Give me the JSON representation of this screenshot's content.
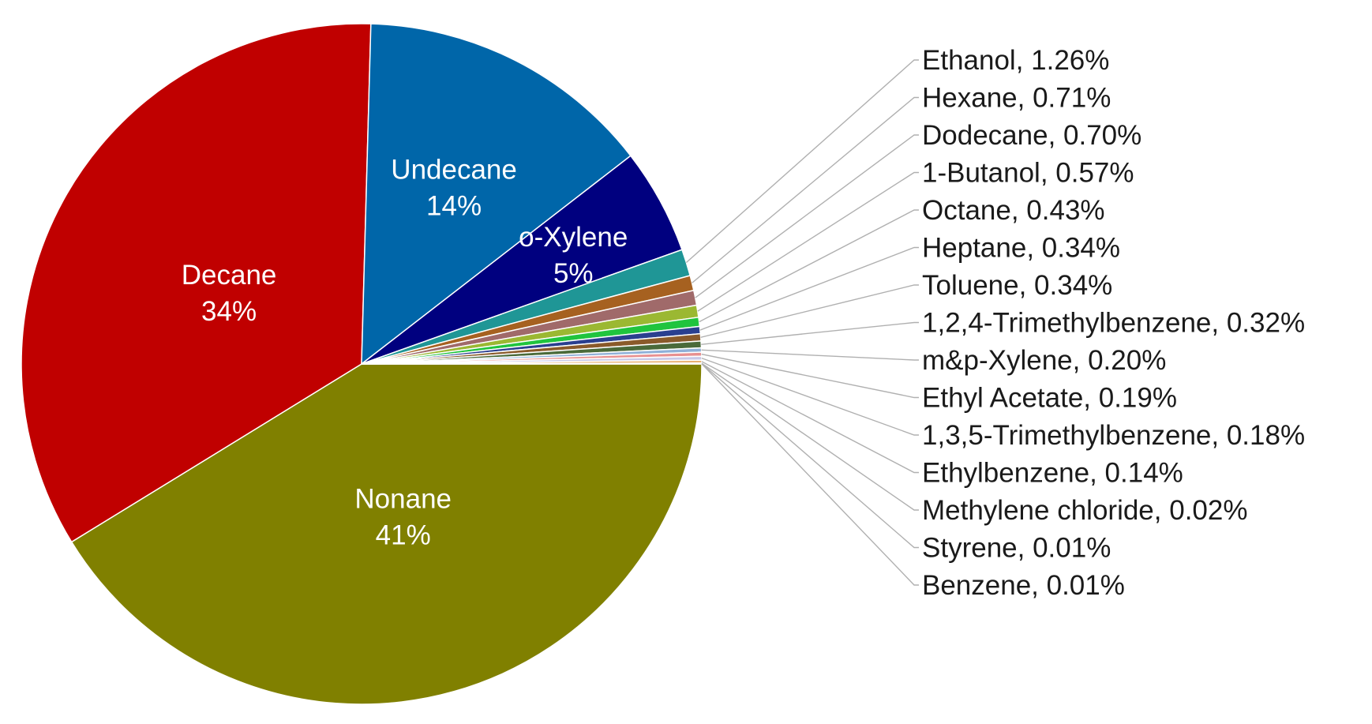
{
  "chart_data": {
    "type": "pie",
    "slices": [
      {
        "name": "Nonane",
        "value": 41,
        "label": "41%",
        "color": "#808000",
        "label_inside": true
      },
      {
        "name": "Decane",
        "value": 34,
        "label": "34%",
        "color": "#C00000",
        "label_inside": true
      },
      {
        "name": "Undecane",
        "value": 14,
        "label": "14%",
        "color": "#0066A9",
        "label_inside": true
      },
      {
        "name": "o-Xylene",
        "value": 5,
        "label": "5%",
        "color": "#00007F",
        "label_inside": true
      },
      {
        "name": "Ethanol",
        "value": 1.26,
        "label": "1.26%",
        "color": "#1F9696",
        "label_inside": false
      },
      {
        "name": "Hexane",
        "value": 0.71,
        "label": "0.71%",
        "color": "#A66120",
        "label_inside": false
      },
      {
        "name": "Dodecane",
        "value": 0.7,
        "label": "0.70%",
        "color": "#A06A6A",
        "label_inside": false
      },
      {
        "name": "1-Butanol",
        "value": 0.57,
        "label": "0.57%",
        "color": "#9BB832",
        "label_inside": false
      },
      {
        "name": "Octane",
        "value": 0.43,
        "label": "0.43%",
        "color": "#20C43E",
        "label_inside": false
      },
      {
        "name": "Heptane",
        "value": 0.34,
        "label": "0.34%",
        "color": "#2A3F8F",
        "label_inside": false
      },
      {
        "name": "Toluene",
        "value": 0.34,
        "label": "0.34%",
        "color": "#8A5A2A",
        "label_inside": false
      },
      {
        "name": "1,2,4-Trimethylbenzene",
        "value": 0.32,
        "label": "0.32%",
        "color": "#4A6A3A",
        "label_inside": false
      },
      {
        "name": "m&p-Xylene",
        "value": 0.2,
        "label": "0.20%",
        "color": "#8FB0D8",
        "label_inside": false
      },
      {
        "name": "Ethyl Acetate",
        "value": 0.19,
        "label": "0.19%",
        "color": "#E89090",
        "label_inside": false
      },
      {
        "name": "1,3,5-Trimethylbenzene",
        "value": 0.18,
        "label": "0.18%",
        "color": "#C8C8E8",
        "label_inside": false
      },
      {
        "name": "Ethylbenzene",
        "value": 0.14,
        "label": "0.14%",
        "color": "#E8B070",
        "label_inside": false
      },
      {
        "name": "Methylene chloride",
        "value": 0.02,
        "label": "0.02%",
        "color": "#B0C8E0",
        "label_inside": false
      },
      {
        "name": "Styrene",
        "value": 0.01,
        "label": "0.01%",
        "color": "#70B0C8",
        "label_inside": false
      },
      {
        "name": "Benzene",
        "value": 0.01,
        "label": "0.01%",
        "color": "#E0C060",
        "label_inside": false
      }
    ],
    "start": "3 o'clock",
    "direction": "clockwise",
    "leader_line_color": "#B0B0B0"
  }
}
